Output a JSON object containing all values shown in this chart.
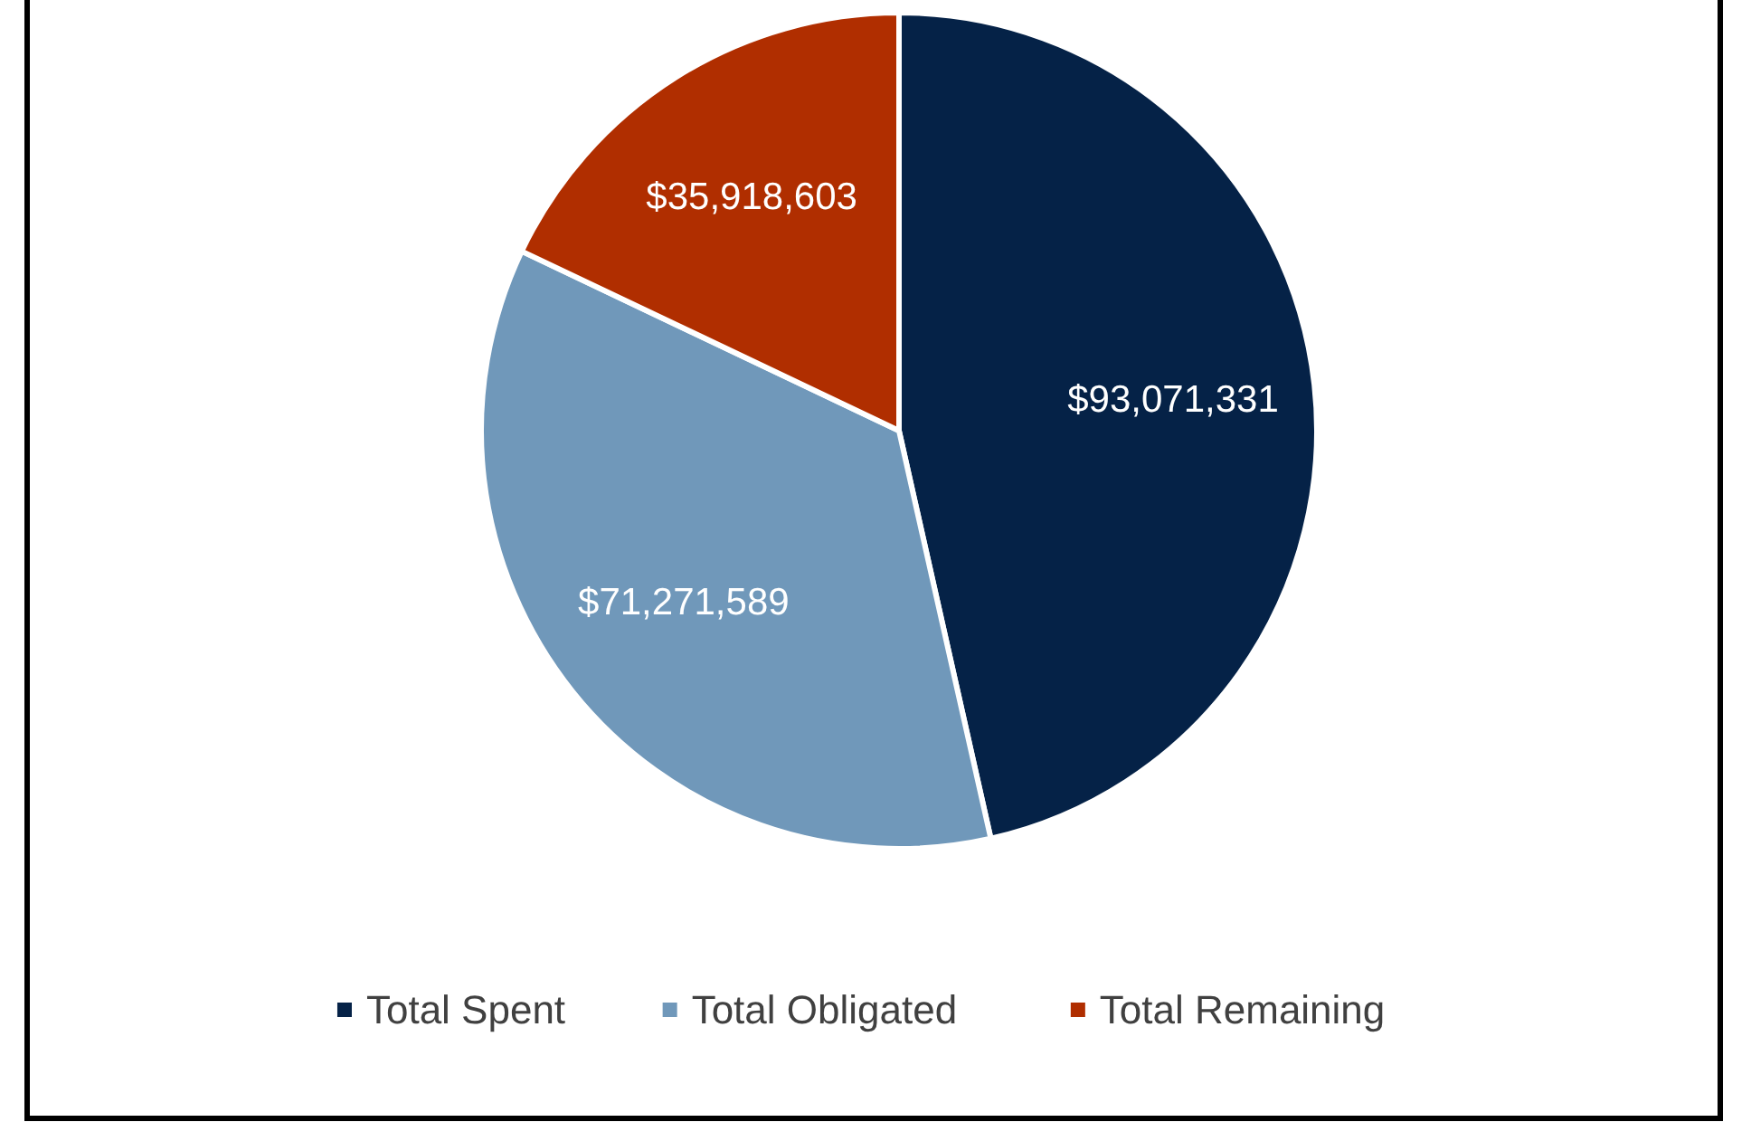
{
  "chart_data": {
    "type": "pie",
    "categories": [
      "Total Spent",
      "Total Obligated",
      "Total Remaining"
    ],
    "values": [
      93071331,
      71271589,
      35918603
    ],
    "value_labels": [
      "$93,071,331",
      "$71,271,589",
      "$35,918,603"
    ],
    "colors": [
      "#052247",
      "#7098ba",
      "#b02e00"
    ],
    "legend": "bottom"
  }
}
